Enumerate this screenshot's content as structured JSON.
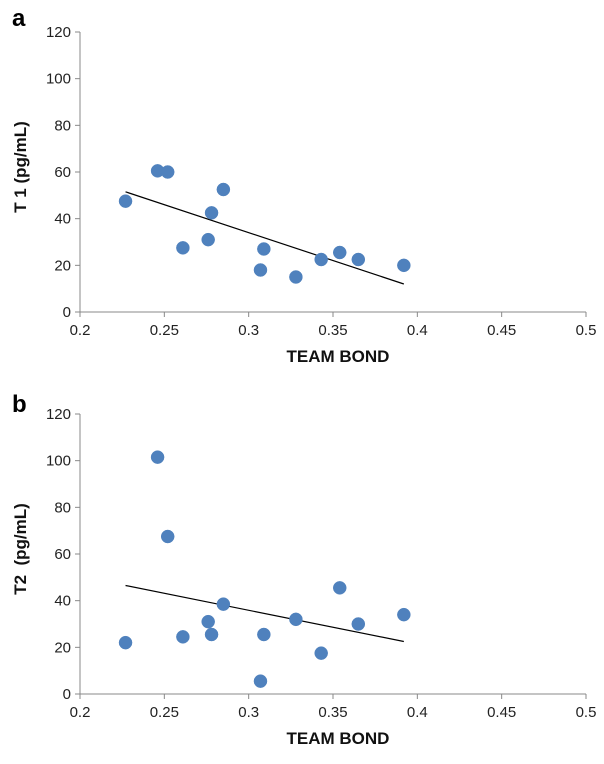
{
  "chart_data": [
    {
      "type": "scatter",
      "panel_label": "a",
      "xlabel": "TEAM BOND",
      "ylabel": "T 1 (pg/mL)",
      "xlim": [
        0.2,
        0.5
      ],
      "ylim": [
        0,
        120
      ],
      "xticks": [
        "0.2",
        "0.25",
        "0.3",
        "0.35",
        "0.4",
        "0.45",
        "0.5"
      ],
      "yticks": [
        "0",
        "20",
        "40",
        "60",
        "80",
        "100",
        "120"
      ],
      "point_color": "#4f81bd",
      "points": [
        {
          "x": 0.227,
          "y": 47.5
        },
        {
          "x": 0.246,
          "y": 60.5
        },
        {
          "x": 0.252,
          "y": 60.0
        },
        {
          "x": 0.261,
          "y": 27.5
        },
        {
          "x": 0.276,
          "y": 31.0
        },
        {
          "x": 0.278,
          "y": 42.5
        },
        {
          "x": 0.285,
          "y": 52.5
        },
        {
          "x": 0.307,
          "y": 18.0
        },
        {
          "x": 0.309,
          "y": 27.0
        },
        {
          "x": 0.328,
          "y": 15.0
        },
        {
          "x": 0.343,
          "y": 22.5
        },
        {
          "x": 0.354,
          "y": 25.5
        },
        {
          "x": 0.365,
          "y": 22.5
        },
        {
          "x": 0.392,
          "y": 20.0
        }
      ],
      "trendline": {
        "x": [
          0.227,
          0.392
        ],
        "y": [
          51.5,
          12.0
        ]
      },
      "grid": false
    },
    {
      "type": "scatter",
      "panel_label": "b",
      "xlabel": "TEAM BOND",
      "ylabel": "T2  (pg/mL)",
      "xlim": [
        0.2,
        0.5
      ],
      "ylim": [
        0,
        120
      ],
      "xticks": [
        "0.2",
        "0.25",
        "0.3",
        "0.35",
        "0.4",
        "0.45",
        "0.5"
      ],
      "yticks": [
        "0",
        "20",
        "40",
        "60",
        "80",
        "100",
        "120"
      ],
      "point_color": "#4f81bd",
      "points": [
        {
          "x": 0.227,
          "y": 22.0
        },
        {
          "x": 0.246,
          "y": 101.5
        },
        {
          "x": 0.252,
          "y": 67.5
        },
        {
          "x": 0.261,
          "y": 24.5
        },
        {
          "x": 0.276,
          "y": 31.0
        },
        {
          "x": 0.278,
          "y": 25.5
        },
        {
          "x": 0.285,
          "y": 38.5
        },
        {
          "x": 0.307,
          "y": 5.5
        },
        {
          "x": 0.309,
          "y": 25.5
        },
        {
          "x": 0.328,
          "y": 32.0
        },
        {
          "x": 0.343,
          "y": 17.5
        },
        {
          "x": 0.354,
          "y": 45.5
        },
        {
          "x": 0.365,
          "y": 30.0
        },
        {
          "x": 0.392,
          "y": 34.0
        }
      ],
      "trendline": {
        "x": [
          0.227,
          0.392
        ],
        "y": [
          46.5,
          22.5
        ]
      },
      "grid": false
    }
  ]
}
